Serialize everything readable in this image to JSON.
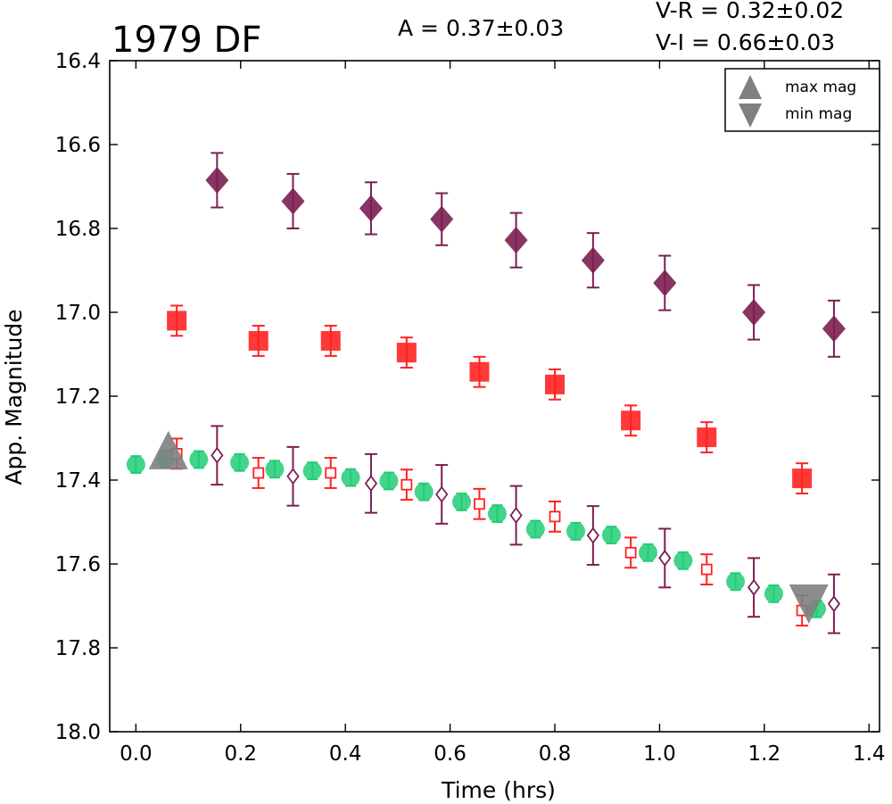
{
  "chart_data": {
    "type": "scatter",
    "title": "1979 DF",
    "annotations": {
      "amplitude": "A  = 0.37±0.03",
      "v_r": "V-R = 0.32±0.02",
      "v_i": "V-I  = 0.66±0.03"
    },
    "xlabel": "Time (hrs)",
    "ylabel": "App. Magnitude",
    "xlim": [
      -0.05,
      1.42
    ],
    "ylim": [
      18.0,
      16.4
    ],
    "y_inverted": true,
    "xticks": [
      "0.0",
      "0.2",
      "0.4",
      "0.6",
      "0.8",
      "1.0",
      "1.2",
      "1.4"
    ],
    "yticks": [
      "16.4",
      "16.6",
      "16.8",
      "17.0",
      "17.2",
      "17.4",
      "17.6",
      "17.8",
      "18.0"
    ],
    "grid": false,
    "legend_position": "top-right",
    "legend": [
      {
        "label": "max mag",
        "marker": "triangle-up"
      },
      {
        "label": "min mag",
        "marker": "triangle-down"
      }
    ],
    "colors": {
      "i_filter": "#7b1f52",
      "r_filter": "#ff2222",
      "v_filter": "#22cc77",
      "extremum_marker": "#808080"
    },
    "series": [
      {
        "marker": "diamond-filled",
        "color_key": "i_filter",
        "points": [
          {
            "x": 0.155,
            "y": 16.685,
            "err": 0.065
          },
          {
            "x": 0.3,
            "y": 16.735,
            "err": 0.065
          },
          {
            "x": 0.449,
            "y": 16.752,
            "err": 0.062
          },
          {
            "x": 0.584,
            "y": 16.778,
            "err": 0.062
          },
          {
            "x": 0.726,
            "y": 16.828,
            "err": 0.065
          },
          {
            "x": 0.873,
            "y": 16.876,
            "err": 0.065
          },
          {
            "x": 1.01,
            "y": 16.93,
            "err": 0.065
          },
          {
            "x": 1.18,
            "y": 17.0,
            "err": 0.065
          },
          {
            "x": 1.333,
            "y": 17.039,
            "err": 0.067
          }
        ]
      },
      {
        "marker": "square-filled",
        "color_key": "r_filter",
        "points": [
          {
            "x": 0.078,
            "y": 17.02,
            "err": 0.036
          },
          {
            "x": 0.234,
            "y": 17.068,
            "err": 0.036
          },
          {
            "x": 0.372,
            "y": 17.068,
            "err": 0.036
          },
          {
            "x": 0.517,
            "y": 17.096,
            "err": 0.036
          },
          {
            "x": 0.656,
            "y": 17.142,
            "err": 0.036
          },
          {
            "x": 0.8,
            "y": 17.172,
            "err": 0.036
          },
          {
            "x": 0.945,
            "y": 17.258,
            "err": 0.036
          },
          {
            "x": 1.09,
            "y": 17.298,
            "err": 0.036
          },
          {
            "x": 1.272,
            "y": 17.396,
            "err": 0.036
          }
        ]
      },
      {
        "marker": "circle-filled",
        "color_key": "v_filter",
        "points": [
          {
            "x": 0.0,
            "y": 17.363,
            "err": 0.02
          },
          {
            "x": 0.057,
            "y": 17.349,
            "err": 0.02
          },
          {
            "x": 0.12,
            "y": 17.351,
            "err": 0.02
          },
          {
            "x": 0.198,
            "y": 17.358,
            "err": 0.02
          },
          {
            "x": 0.265,
            "y": 17.374,
            "err": 0.02
          },
          {
            "x": 0.337,
            "y": 17.378,
            "err": 0.02
          },
          {
            "x": 0.41,
            "y": 17.394,
            "err": 0.02
          },
          {
            "x": 0.483,
            "y": 17.402,
            "err": 0.02
          },
          {
            "x": 0.55,
            "y": 17.428,
            "err": 0.02
          },
          {
            "x": 0.622,
            "y": 17.452,
            "err": 0.02
          },
          {
            "x": 0.69,
            "y": 17.48,
            "err": 0.02
          },
          {
            "x": 0.763,
            "y": 17.517,
            "err": 0.02
          },
          {
            "x": 0.84,
            "y": 17.522,
            "err": 0.02
          },
          {
            "x": 0.908,
            "y": 17.531,
            "err": 0.02
          },
          {
            "x": 0.978,
            "y": 17.573,
            "err": 0.02
          },
          {
            "x": 1.045,
            "y": 17.592,
            "err": 0.02
          },
          {
            "x": 1.145,
            "y": 17.642,
            "err": 0.02
          },
          {
            "x": 1.218,
            "y": 17.671,
            "err": 0.02
          },
          {
            "x": 1.3,
            "y": 17.707,
            "err": 0.02
          }
        ]
      },
      {
        "marker": "square-open",
        "color_key": "r_filter",
        "points": [
          {
            "x": 0.078,
            "y": 17.337,
            "err": 0.036
          },
          {
            "x": 0.234,
            "y": 17.383,
            "err": 0.036
          },
          {
            "x": 0.372,
            "y": 17.383,
            "err": 0.036
          },
          {
            "x": 0.517,
            "y": 17.411,
            "err": 0.036
          },
          {
            "x": 0.656,
            "y": 17.457,
            "err": 0.036
          },
          {
            "x": 0.8,
            "y": 17.487,
            "err": 0.036
          },
          {
            "x": 0.945,
            "y": 17.573,
            "err": 0.036
          },
          {
            "x": 1.09,
            "y": 17.613,
            "err": 0.036
          },
          {
            "x": 1.272,
            "y": 17.711,
            "err": 0.036
          }
        ]
      },
      {
        "marker": "diamond-open",
        "color_key": "i_filter",
        "points": [
          {
            "x": 0.155,
            "y": 17.341,
            "err": 0.07
          },
          {
            "x": 0.3,
            "y": 17.391,
            "err": 0.07
          },
          {
            "x": 0.449,
            "y": 17.408,
            "err": 0.07
          },
          {
            "x": 0.584,
            "y": 17.434,
            "err": 0.07
          },
          {
            "x": 0.726,
            "y": 17.484,
            "err": 0.07
          },
          {
            "x": 0.873,
            "y": 17.532,
            "err": 0.07
          },
          {
            "x": 1.01,
            "y": 17.586,
            "err": 0.07
          },
          {
            "x": 1.18,
            "y": 17.656,
            "err": 0.07
          },
          {
            "x": 1.333,
            "y": 17.695,
            "err": 0.07
          }
        ]
      },
      {
        "marker": "triangle-up",
        "color_key": "extremum_marker",
        "points": [
          {
            "x": 0.062,
            "y": 17.355
          }
        ]
      },
      {
        "marker": "triangle-down",
        "color_key": "extremum_marker",
        "points": [
          {
            "x": 1.285,
            "y": 17.702
          }
        ]
      }
    ]
  }
}
